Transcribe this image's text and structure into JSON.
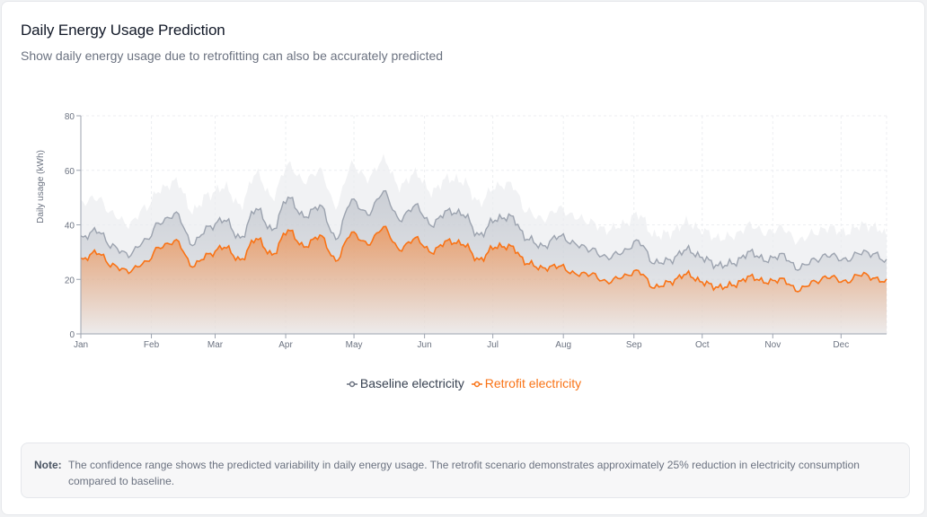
{
  "header": {
    "title": "Daily Energy Usage Prediction",
    "subtitle": "Show daily energy usage due to retrofitting can also be accurately predicted"
  },
  "legend": {
    "baseline_label": "Baseline electricity",
    "retrofit_label": "Retrofit electricity"
  },
  "note": {
    "label": "Note:",
    "text": "The confidence range shows the predicted variability in daily energy usage. The retrofit scenario demonstrates approximately 25% reduction in electricity consumption compared to baseline."
  },
  "colors": {
    "baseline": "#9ca3af",
    "retrofit": "#f97316",
    "band": "#ebecef"
  },
  "chart_data": {
    "type": "area",
    "title": "",
    "xlabel": "",
    "ylabel": "Daily usage (kWh)",
    "ylim": [
      0,
      80
    ],
    "yticks": [
      0,
      20,
      40,
      60,
      80
    ],
    "x_ticks": [
      "Jan",
      "Feb",
      "Mar",
      "Apr",
      "May",
      "Jun",
      "Jul",
      "Aug",
      "Sep",
      "Oct",
      "Nov",
      "Dec"
    ],
    "x_range_days": [
      0,
      354
    ],
    "grid": true,
    "legend_position": "bottom-center",
    "series_note": "Weekly samples (day 0 = Jan 1); baseline and retrofit lines with upper confidence band on baseline",
    "series": [
      {
        "name": "Baseline electricity",
        "x": [
          0,
          7,
          14,
          21,
          28,
          35,
          42,
          49,
          56,
          63,
          70,
          77,
          84,
          91,
          98,
          105,
          112,
          119,
          126,
          133,
          140,
          147,
          154,
          161,
          168,
          175,
          182,
          189,
          196,
          203,
          210,
          217,
          224,
          231,
          238,
          245,
          252,
          259,
          266,
          273,
          280,
          287,
          294,
          301,
          308,
          315,
          322,
          329,
          336,
          343,
          350,
          354
        ],
        "values": [
          35,
          38,
          32,
          29,
          34,
          41,
          44,
          33,
          39,
          42,
          35,
          46,
          38,
          50,
          43,
          47,
          35,
          49,
          44,
          52,
          42,
          47,
          40,
          45,
          44,
          36,
          42,
          43,
          35,
          32,
          36,
          33,
          31,
          28,
          30,
          34,
          26,
          27,
          31,
          28,
          25,
          26,
          30,
          27,
          29,
          24,
          27,
          29,
          27,
          30,
          29,
          26
        ]
      },
      {
        "name": "Retrofit electricity",
        "x": [
          0,
          7,
          14,
          21,
          28,
          35,
          42,
          49,
          56,
          63,
          70,
          77,
          84,
          91,
          98,
          105,
          112,
          119,
          126,
          133,
          140,
          147,
          154,
          161,
          168,
          175,
          182,
          189,
          196,
          203,
          210,
          217,
          224,
          231,
          238,
          245,
          252,
          259,
          266,
          273,
          280,
          287,
          294,
          301,
          308,
          315,
          322,
          329,
          336,
          343,
          350,
          354
        ],
        "values": [
          27,
          30,
          25,
          23,
          26,
          32,
          34,
          25,
          29,
          32,
          27,
          35,
          29,
          38,
          32,
          36,
          27,
          37,
          33,
          39,
          31,
          35,
          30,
          34,
          33,
          27,
          32,
          32,
          26,
          24,
          25,
          22,
          22,
          19,
          21,
          23,
          17,
          19,
          22,
          19,
          17,
          18,
          21,
          19,
          20,
          16,
          19,
          21,
          19,
          22,
          20,
          19
        ]
      },
      {
        "name": "Baseline upper confidence",
        "x": [
          0,
          7,
          14,
          21,
          28,
          35,
          42,
          49,
          56,
          63,
          70,
          77,
          84,
          91,
          98,
          105,
          112,
          119,
          126,
          133,
          140,
          147,
          154,
          161,
          168,
          175,
          182,
          189,
          196,
          203,
          210,
          217,
          224,
          231,
          238,
          245,
          252,
          259,
          266,
          273,
          280,
          287,
          294,
          301,
          308,
          315,
          322,
          329,
          336,
          343,
          350,
          354
        ],
        "values": [
          48,
          50,
          44,
          40,
          46,
          53,
          56,
          45,
          51,
          54,
          47,
          59,
          50,
          62,
          56,
          60,
          47,
          62,
          57,
          64,
          54,
          59,
          52,
          57,
          56,
          48,
          54,
          55,
          45,
          42,
          46,
          43,
          41,
          38,
          40,
          44,
          36,
          37,
          41,
          38,
          35,
          36,
          40,
          37,
          39,
          34,
          37,
          39,
          37,
          40,
          39,
          36
        ]
      }
    ]
  }
}
